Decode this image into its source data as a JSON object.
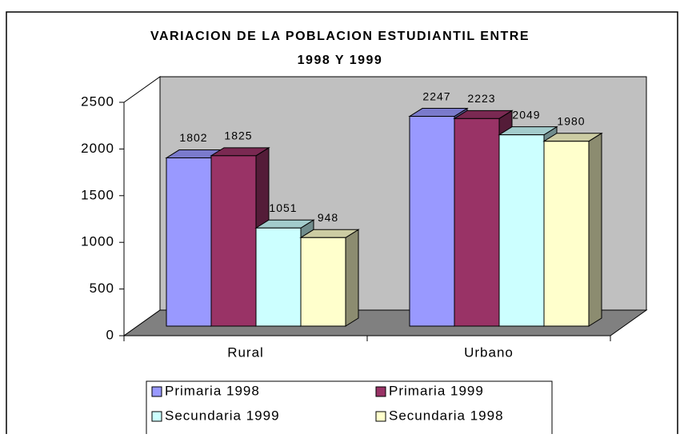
{
  "chart_data": {
    "type": "bar3d",
    "title": [
      "VARIACION DE LA POBLACION ESTUDIANTIL ENTRE",
      "1998 Y 1999"
    ],
    "categories": [
      "Rural",
      "Urbano"
    ],
    "series": [
      {
        "name": "Primaria 1998",
        "color": "#9999ff",
        "values": [
          1802,
          2247
        ]
      },
      {
        "name": "Primaria 1999",
        "color": "#993366",
        "values": [
          1825,
          2223
        ]
      },
      {
        "name": "Secundaria 1999",
        "color": "#ccffff",
        "values": [
          1051,
          2049
        ]
      },
      {
        "name": "Secundaria 1998",
        "color": "#ffffcc",
        "values": [
          948,
          1980
        ]
      }
    ],
    "ylim": [
      0,
      2500
    ],
    "yticks": [
      0,
      500,
      1000,
      1500,
      2000,
      2500
    ],
    "wall_color": "#c0c0c0",
    "floor_color": "#808080"
  }
}
